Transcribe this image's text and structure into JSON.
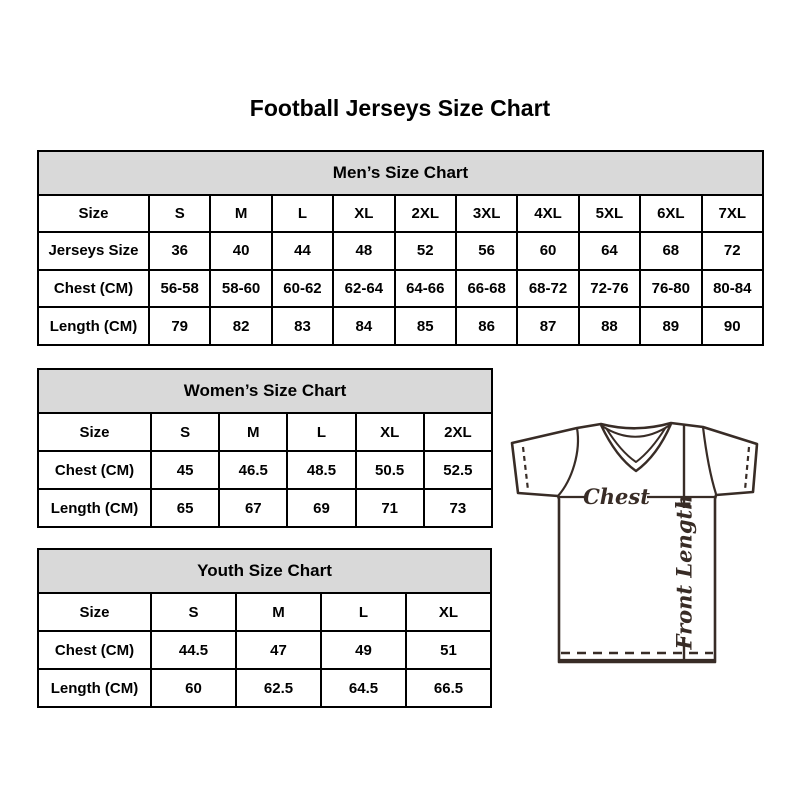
{
  "title": "Football Jerseys Size Chart",
  "colors": {
    "table_border": "#000000",
    "section_header_bg": "#d9d9d9",
    "jersey_line": "#382c26",
    "text": "#000000"
  },
  "chart_data": [
    {
      "type": "table",
      "title": "Men’s Size Chart",
      "rows": [
        [
          "Size",
          "S",
          "M",
          "L",
          "XL",
          "2XL",
          "3XL",
          "4XL",
          "5XL",
          "6XL",
          "7XL"
        ],
        [
          "Jerseys Size",
          "36",
          "40",
          "44",
          "48",
          "52",
          "56",
          "60",
          "64",
          "68",
          "72"
        ],
        [
          "Chest (CM)",
          "56-58",
          "58-60",
          "60-62",
          "62-64",
          "64-66",
          "66-68",
          "68-72",
          "72-76",
          "76-80",
          "80-84"
        ],
        [
          "Length (CM)",
          "79",
          "82",
          "83",
          "84",
          "85",
          "86",
          "87",
          "88",
          "89",
          "90"
        ]
      ]
    },
    {
      "type": "table",
      "title": "Women’s Size Chart",
      "rows": [
        [
          "Size",
          "S",
          "M",
          "L",
          "XL",
          "2XL"
        ],
        [
          "Chest (CM)",
          "45",
          "46.5",
          "48.5",
          "50.5",
          "52.5"
        ],
        [
          "Length (CM)",
          "65",
          "67",
          "69",
          "71",
          "73"
        ]
      ]
    },
    {
      "type": "table",
      "title": "Youth Size Chart",
      "rows": [
        [
          "Size",
          "S",
          "M",
          "L",
          "XL"
        ],
        [
          "Chest (CM)",
          "44.5",
          "47",
          "49",
          "51"
        ],
        [
          "Length (CM)",
          "60",
          "62.5",
          "64.5",
          "66.5"
        ]
      ]
    }
  ],
  "diagram": {
    "chest_label": "Chest",
    "front_length_label": "Front Length"
  }
}
